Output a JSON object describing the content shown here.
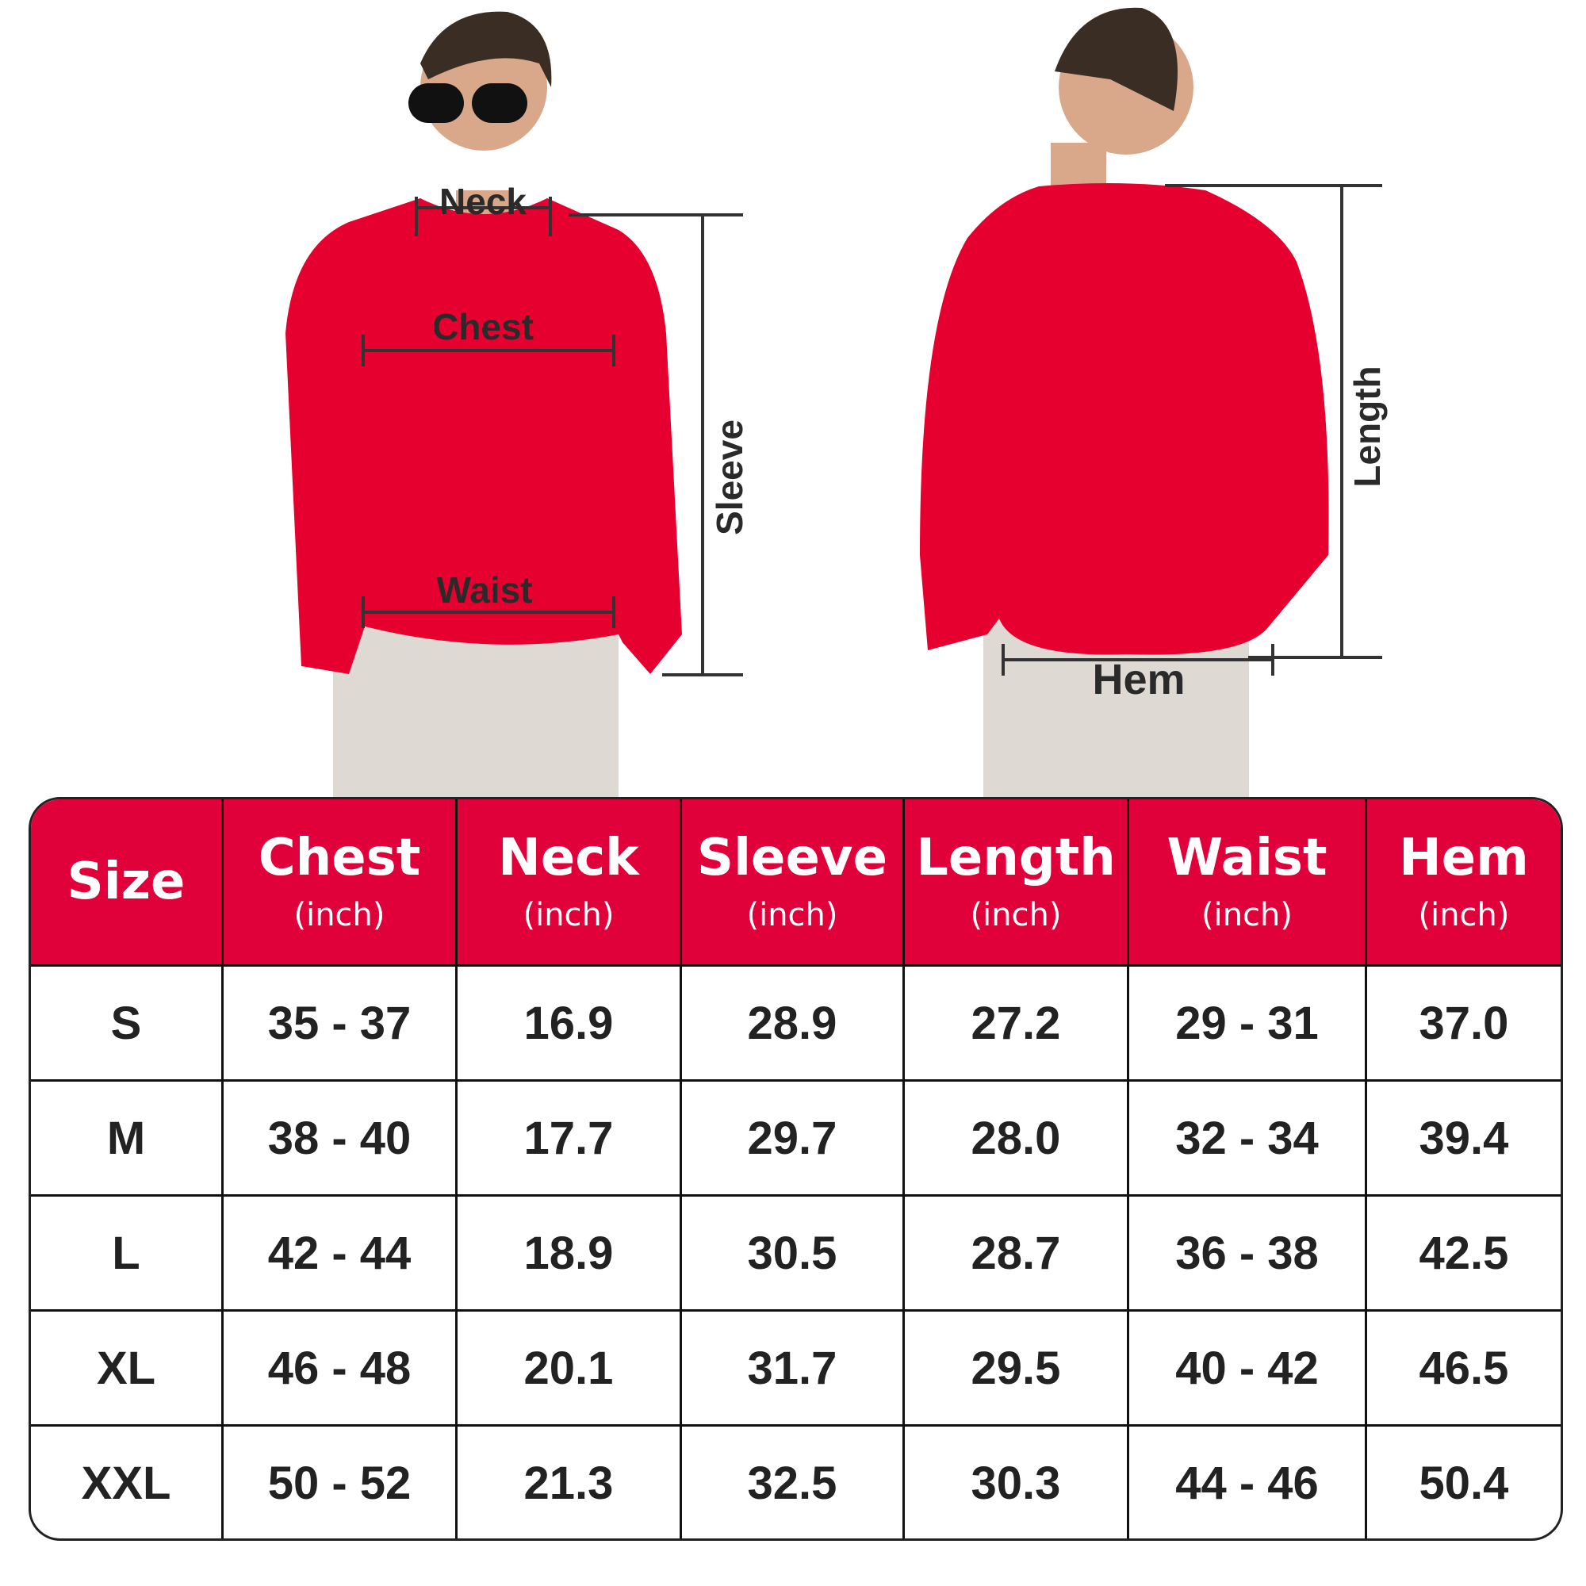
{
  "figures": {
    "front_labels": {
      "neck": "Neck",
      "chest": "Chest",
      "waist": "Waist",
      "sleeve": "Sleeve"
    },
    "back_labels": {
      "length": "Length",
      "hem": "Hem"
    },
    "garment_color": "#e5002f",
    "pants_color": "#dedad3"
  },
  "table": {
    "header_color": "#e0003a",
    "columns": [
      {
        "title": "Size",
        "unit": ""
      },
      {
        "title": "Chest",
        "unit": "(inch)"
      },
      {
        "title": "Neck",
        "unit": "(inch)"
      },
      {
        "title": "Sleeve",
        "unit": "(inch)"
      },
      {
        "title": "Length",
        "unit": "(inch)"
      },
      {
        "title": "Waist",
        "unit": "(inch)"
      },
      {
        "title": "Hem",
        "unit": "(inch)"
      }
    ],
    "rows": [
      [
        "S",
        "35 - 37",
        "16.9",
        "28.9",
        "27.2",
        "29 - 31",
        "37.0"
      ],
      [
        "M",
        "38 - 40",
        "17.7",
        "29.7",
        "28.0",
        "32 - 34",
        "39.4"
      ],
      [
        "L",
        "42 - 44",
        "18.9",
        "30.5",
        "28.7",
        "36 - 38",
        "42.5"
      ],
      [
        "XL",
        "46 - 48",
        "20.1",
        "31.7",
        "29.5",
        "40 - 42",
        "46.5"
      ],
      [
        "XXL",
        "50 - 52",
        "21.3",
        "32.5",
        "30.3",
        "44 - 46",
        "50.4"
      ]
    ]
  }
}
